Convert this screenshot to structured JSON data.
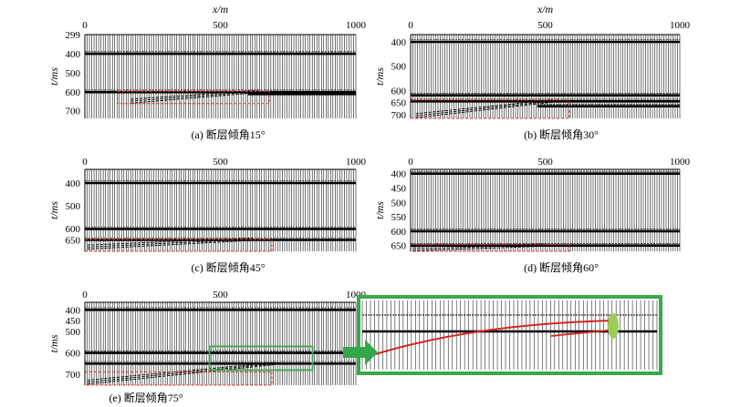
{
  "chart_data": [
    {
      "id": "a",
      "type": "seismic-section",
      "caption": "(a) 断层倾角15°",
      "xlabel": "x/m",
      "ylabel": "t/ms",
      "xlim": [
        0,
        1000
      ],
      "xticks": [
        0,
        500,
        1000
      ],
      "ylim": [
        299,
        740
      ],
      "yticks": [
        299,
        400,
        500,
        600,
        700
      ],
      "reflectors": [
        {
          "t": 400,
          "from": 0,
          "to": 1000
        },
        {
          "t": 602,
          "from": 0,
          "to": 1000
        },
        {
          "t": 612,
          "from": 600,
          "to": 1000
        }
      ],
      "dipping_event": {
        "x0": 170,
        "t0": 660,
        "x1": 640,
        "t1": 604
      },
      "highlight_box": {
        "x": [
          120,
          680
        ],
        "t": [
          598,
          662
        ]
      }
    },
    {
      "id": "b",
      "type": "seismic-section",
      "caption": "(b) 断层倾角30°",
      "xlabel": "x/m",
      "ylabel": "t/ms",
      "xlim": [
        0,
        1000
      ],
      "xticks": [
        0,
        500,
        1000
      ],
      "ylim": [
        370,
        715
      ],
      "yticks": [
        400,
        500,
        600,
        650,
        700
      ],
      "reflectors": [
        {
          "t": 400,
          "from": 0,
          "to": 1000
        },
        {
          "t": 620,
          "from": 0,
          "to": 1000
        },
        {
          "t": 645,
          "from": 0,
          "to": 1000
        },
        {
          "t": 665,
          "from": 470,
          "to": 1000
        }
      ],
      "dipping_event": {
        "x0": 20,
        "t0": 712,
        "x1": 530,
        "t1": 648
      },
      "highlight_box": {
        "x": [
          0,
          590
        ],
        "t": [
          640,
          715
        ]
      }
    },
    {
      "id": "c",
      "type": "seismic-section",
      "caption": "(c) 断层倾角45°",
      "xlabel": "",
      "ylabel": "t/ms",
      "xlim": [
        0,
        1000
      ],
      "xticks": [
        0,
        500,
        1000
      ],
      "ylim": [
        340,
        700
      ],
      "yticks": [
        400,
        500,
        600,
        650
      ],
      "reflectors": [
        {
          "t": 400,
          "from": 0,
          "to": 1000
        },
        {
          "t": 602,
          "from": 0,
          "to": 1000
        },
        {
          "t": 650,
          "from": 0,
          "to": 1000
        }
      ],
      "dipping_event": {
        "x0": 10,
        "t0": 690,
        "x1": 620,
        "t1": 652
      },
      "highlight_box": {
        "x": [
          0,
          690
        ],
        "t": [
          648,
          700
        ]
      }
    },
    {
      "id": "d",
      "type": "seismic-section",
      "caption": "(d) 断层倾角60°",
      "xlabel": "",
      "ylabel": "t/ms",
      "xlim": [
        0,
        1000
      ],
      "xticks": [
        0,
        500,
        1000
      ],
      "ylim": [
        385,
        670
      ],
      "yticks": [
        400,
        450,
        500,
        550,
        600,
        650
      ],
      "reflectors": [
        {
          "t": 400,
          "from": 0,
          "to": 1000
        },
        {
          "t": 600,
          "from": 0,
          "to": 1000
        },
        {
          "t": 650,
          "from": 0,
          "to": 1000
        }
      ],
      "dipping_event": {
        "x0": 10,
        "t0": 668,
        "x1": 500,
        "t1": 652
      },
      "highlight_box": {
        "x": [
          0,
          590
        ],
        "t": [
          646,
          670
        ]
      }
    },
    {
      "id": "e",
      "type": "seismic-section",
      "caption": "(e) 断层倾角75°",
      "xlabel": "",
      "ylabel": "t/ms",
      "xlim": [
        0,
        1000
      ],
      "xticks": [
        0,
        500,
        1000
      ],
      "ylim": [
        365,
        750
      ],
      "yticks": [
        400,
        450,
        500,
        600,
        700
      ],
      "reflectors": [
        {
          "t": 400,
          "from": 0,
          "to": 1000
        },
        {
          "t": 600,
          "from": 0,
          "to": 1000
        },
        {
          "t": 650,
          "from": 0,
          "to": 1000
        }
      ],
      "dipping_event": {
        "x0": 10,
        "t0": 745,
        "x1": 700,
        "t1": 655
      },
      "highlight_box": {
        "x": [
          0,
          690
        ],
        "t": [
          688,
          750
        ]
      },
      "zoom_box": {
        "x": [
          460,
          840
        ],
        "t": [
          570,
          680
        ]
      },
      "zoom_inset": {
        "note": "enlarged view of green box",
        "traces": true
      }
    }
  ],
  "colors": {
    "trace": "#000000",
    "highlight_box": "#e0302a",
    "zoom_box": "#3aa84c",
    "arrow": "#33a84a",
    "inset_marker": "#9ccd58",
    "inset_curve": "#d4261f"
  }
}
